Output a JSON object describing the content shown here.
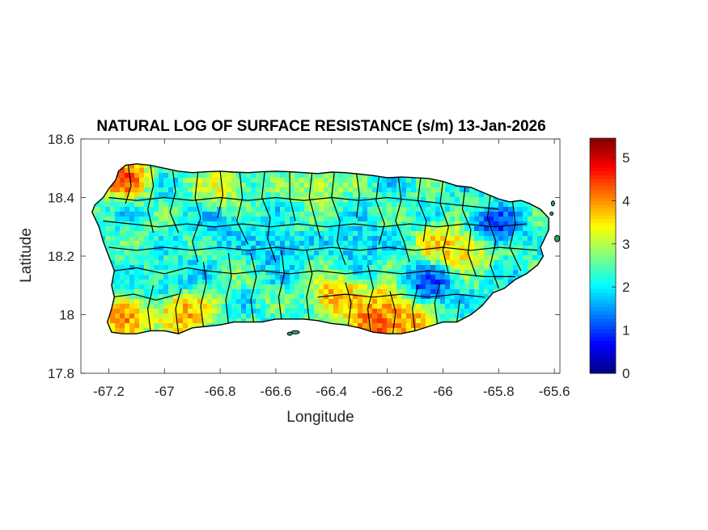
{
  "chart_data": {
    "type": "heatmap",
    "title": "NATURAL LOG OF SURFACE RESISTANCE (s/m) 13-Jan-2026",
    "xlabel": "Longitude",
    "ylabel": "Latitude",
    "xlim": [
      -67.3,
      -65.58
    ],
    "ylim": [
      17.8,
      18.6
    ],
    "xticks": [
      -67.2,
      -67,
      -66.8,
      -66.6,
      -66.4,
      -66.2,
      -66,
      -65.8,
      -65.6
    ],
    "xtick_labels": [
      "-67.2",
      "-67",
      "-66.8",
      "-66.6",
      "-66.4",
      "-66.2",
      "-66",
      "-65.8",
      "-65.6"
    ],
    "yticks": [
      17.8,
      18,
      18.2,
      18.4,
      18.6
    ],
    "ytick_labels": [
      "17.8",
      "18",
      "18.2",
      "18.4",
      "18.6"
    ],
    "colorbar": {
      "range": [
        0,
        5.45
      ],
      "ticks": [
        0,
        1,
        2,
        3,
        4,
        5
      ],
      "tick_labels": [
        "0",
        "1",
        "2",
        "3",
        "4",
        "5"
      ],
      "colormap": "jet"
    },
    "background_level": 2.3,
    "hotspots": [
      {
        "lon": -67.15,
        "lat": 18.47,
        "value": 5.0
      },
      {
        "lon": -67.15,
        "lat": 17.98,
        "value": 4.6
      },
      {
        "lon": -66.93,
        "lat": 18.0,
        "value": 4.4
      },
      {
        "lon": -66.38,
        "lat": 18.06,
        "value": 4.4
      },
      {
        "lon": -66.25,
        "lat": 17.97,
        "value": 5.0
      },
      {
        "lon": -66.2,
        "lat": 18.04,
        "value": 4.3
      },
      {
        "lon": -66.12,
        "lat": 17.98,
        "value": 4.3
      },
      {
        "lon": -66.0,
        "lat": 18.24,
        "value": 3.9
      },
      {
        "lon": -65.92,
        "lat": 18.22,
        "value": 3.8
      },
      {
        "lon": -66.8,
        "lat": 18.44,
        "value": 3.5
      },
      {
        "lon": -66.45,
        "lat": 18.44,
        "value": 3.3
      },
      {
        "lon": -66.9,
        "lat": 18.02,
        "value": 3.6
      },
      {
        "lon": -65.81,
        "lat": 18.3,
        "value": 0.5
      },
      {
        "lon": -66.06,
        "lat": 18.1,
        "value": 0.7
      },
      {
        "lon": -66.6,
        "lat": 18.22,
        "value": 1.5
      },
      {
        "lon": -66.3,
        "lat": 18.24,
        "value": 1.6
      },
      {
        "lon": -66.8,
        "lat": 18.3,
        "value": 1.7
      },
      {
        "lon": -66.95,
        "lat": 18.13,
        "value": 1.8
      }
    ]
  },
  "colors": {
    "coast": "#000000",
    "axis": "#262626",
    "background": "#ffffff"
  }
}
